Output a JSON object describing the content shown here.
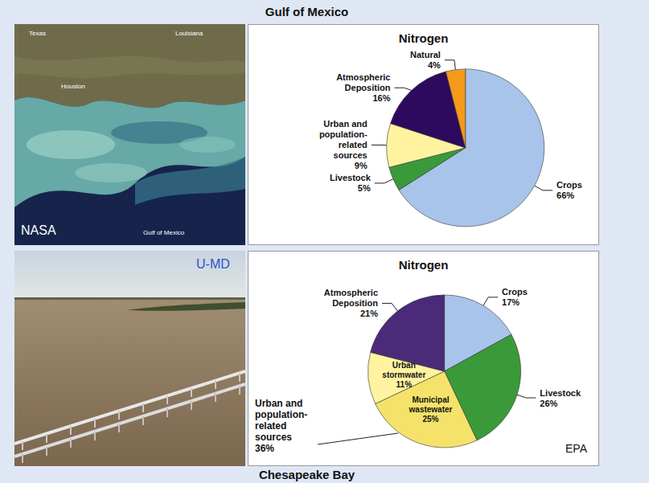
{
  "header": "Gulf of Mexico",
  "footer": "Chesapeake Bay",
  "photos": [
    {
      "credit": "NASA",
      "labels": [
        "Texas",
        "Louisiana",
        "Houston",
        "Gulf of Mexico"
      ]
    },
    {
      "credit": "U-MD"
    }
  ],
  "chart_data": [
    {
      "type": "pie",
      "title": "Nitrogen",
      "categories": [
        "Crops",
        "Livestock",
        "Urban and population-related sources",
        "Atmospheric Deposition",
        "Natural"
      ],
      "values": [
        66,
        5,
        9,
        16,
        4
      ],
      "value_labels": [
        "66%",
        "5%",
        "9%",
        "16%",
        "4%"
      ],
      "colors": [
        "#a9c4ea",
        "#3a9a3a",
        "#fff3a0",
        "#2d0a5e",
        "#f59a1a"
      ],
      "data_labels": true
    },
    {
      "type": "pie",
      "title": "Nitrogen",
      "categories": [
        "Crops",
        "Livestock",
        "Municipal wastewater",
        "Urban stormwater",
        "Atmospheric Deposition"
      ],
      "values": [
        17,
        26,
        25,
        11,
        21
      ],
      "value_labels": [
        "17%",
        "26%",
        "25%",
        "11%",
        "21%"
      ],
      "colors": [
        "#a9c4ea",
        "#3a9a3a",
        "#f5e26a",
        "#fff3a0",
        "#4b2a7a"
      ],
      "data_labels": true,
      "group": {
        "label": "Urban and population-related sources",
        "value": 36,
        "value_label": "36%",
        "members": [
          "Municipal wastewater",
          "Urban stormwater"
        ]
      },
      "annotations": [
        "EPA"
      ]
    }
  ]
}
